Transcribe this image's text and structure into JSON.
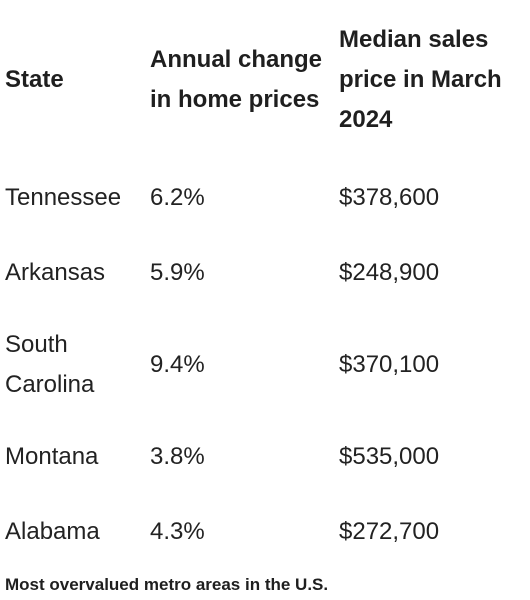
{
  "table": {
    "headers": {
      "state": "State",
      "annual_change": "Annual change in home prices",
      "median_price": "Median sales price in March 2024"
    },
    "rows": [
      {
        "state": "Tennessee",
        "annual_change": "6.2%",
        "median_price": "$378,600"
      },
      {
        "state": "Arkansas",
        "annual_change": "5.9%",
        "median_price": "$248,900"
      },
      {
        "state": "South Carolina",
        "annual_change": "9.4%",
        "median_price": "$370,100"
      },
      {
        "state": "Montana",
        "annual_change": "3.8%",
        "median_price": "$535,000"
      },
      {
        "state": "Alabama",
        "annual_change": "4.3%",
        "median_price": "$272,700"
      }
    ]
  },
  "footer": {
    "heading": "Most overvalued metro areas in the U.S."
  }
}
